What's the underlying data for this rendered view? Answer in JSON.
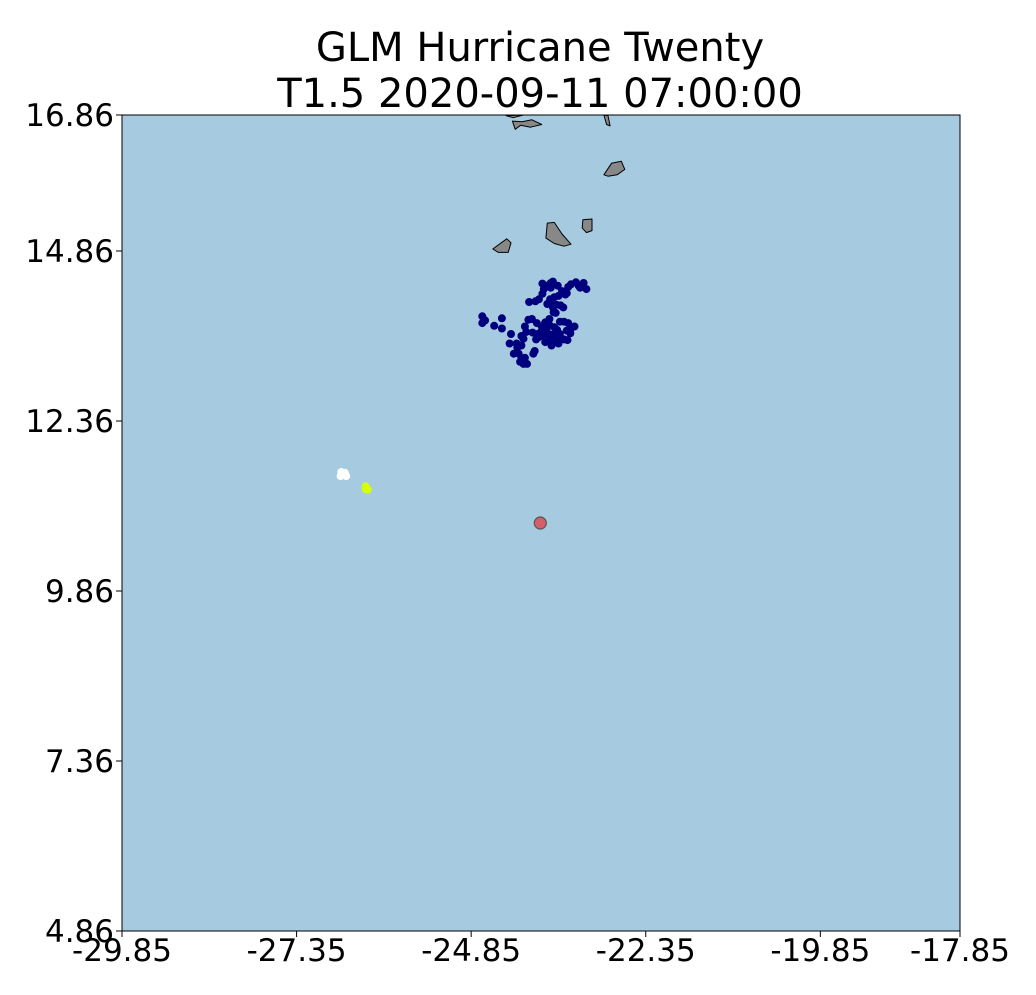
{
  "figure": {
    "title_line1": "GLM Hurricane Twenty",
    "title_line2": "T1.5 2020-09-11 07:00:00"
  },
  "chart_data": {
    "type": "scatter",
    "projection": "lon-lat map",
    "ocean_color": "#a6cadf",
    "land_color": "#888888",
    "xlim": [
      -29.85,
      -17.85
    ],
    "ylim": [
      4.86,
      16.86
    ],
    "xticks": [
      "-29.85",
      "-27.35",
      "-24.85",
      "-22.35",
      "-19.85",
      "-17.85"
    ],
    "yticks": [
      "16.86",
      "14.86",
      "12.36",
      "9.86",
      "7.36",
      "4.86"
    ],
    "islands": [
      {
        "name": "Santo Antão",
        "points": [
          [
            -24.35,
            16.85
          ],
          [
            -24.25,
            16.82
          ],
          [
            -24.1,
            16.86
          ]
        ]
      },
      {
        "name": "São Vicente",
        "points": [
          [
            -24.26,
            16.77
          ],
          [
            -24.12,
            16.76
          ],
          [
            -23.98,
            16.79
          ],
          [
            -23.84,
            16.72
          ],
          [
            -24.0,
            16.68
          ],
          [
            -24.14,
            16.71
          ],
          [
            -24.22,
            16.65
          ]
        ]
      },
      {
        "name": "Sal",
        "points": [
          [
            -22.95,
            16.86
          ],
          [
            -22.89,
            16.85
          ],
          [
            -22.86,
            16.7
          ],
          [
            -22.91,
            16.72
          ]
        ]
      },
      {
        "name": "Boa Vista",
        "points": [
          [
            -22.95,
            15.98
          ],
          [
            -22.84,
            16.15
          ],
          [
            -22.7,
            16.18
          ],
          [
            -22.65,
            16.06
          ],
          [
            -22.76,
            15.98
          ],
          [
            -22.89,
            15.96
          ]
        ]
      },
      {
        "name": "Maio",
        "points": [
          [
            -23.25,
            15.32
          ],
          [
            -23.12,
            15.33
          ],
          [
            -23.12,
            15.16
          ],
          [
            -23.2,
            15.13
          ],
          [
            -23.26,
            15.2
          ]
        ]
      },
      {
        "name": "Santiago",
        "points": [
          [
            -23.76,
            15.27
          ],
          [
            -23.66,
            15.28
          ],
          [
            -23.55,
            15.11
          ],
          [
            -23.42,
            14.96
          ],
          [
            -23.52,
            14.93
          ],
          [
            -23.66,
            14.97
          ],
          [
            -23.78,
            15.05
          ]
        ]
      },
      {
        "name": "Fogo",
        "points": [
          [
            -24.46,
            14.95
          ],
          [
            -24.34,
            15.04
          ],
          [
            -24.28,
            14.98
          ],
          [
            -24.32,
            14.84
          ],
          [
            -24.46,
            14.84
          ],
          [
            -24.54,
            14.89
          ]
        ]
      }
    ],
    "series": [
      {
        "color": "#00007f",
        "points": [
          [
            -24.69,
            13.8
          ],
          [
            -24.69,
            13.9
          ],
          [
            -24.65,
            13.84
          ],
          [
            -24.52,
            13.76
          ],
          [
            -24.41,
            13.87
          ],
          [
            -24.41,
            13.72
          ],
          [
            -24.3,
            13.5
          ],
          [
            -24.2,
            13.5
          ],
          [
            -24.28,
            13.64
          ],
          [
            -24.13,
            13.61
          ],
          [
            -24.13,
            13.47
          ],
          [
            -24.19,
            13.44
          ],
          [
            -24.17,
            13.35
          ],
          [
            -24.24,
            13.35
          ],
          [
            -24.13,
            13.27
          ],
          [
            -24.08,
            13.29
          ],
          [
            -24.1,
            13.2
          ],
          [
            -24.15,
            13.23
          ],
          [
            -24.05,
            13.2
          ],
          [
            -23.96,
            13.35
          ],
          [
            -23.94,
            13.39
          ],
          [
            -24.1,
            13.57
          ],
          [
            -24.06,
            13.67
          ],
          [
            -24.08,
            13.75
          ],
          [
            -24.03,
            13.85
          ],
          [
            -23.98,
            13.86
          ],
          [
            -23.91,
            13.8
          ],
          [
            -23.97,
            13.66
          ],
          [
            -23.86,
            13.66
          ],
          [
            -23.84,
            13.75
          ],
          [
            -23.79,
            13.81
          ],
          [
            -23.73,
            13.77
          ],
          [
            -23.69,
            13.63
          ],
          [
            -23.66,
            13.74
          ],
          [
            -23.73,
            13.86
          ],
          [
            -23.67,
            13.96
          ],
          [
            -23.58,
            13.82
          ],
          [
            -23.62,
            13.7
          ],
          [
            -23.58,
            13.64
          ],
          [
            -23.52,
            13.82
          ],
          [
            -23.46,
            13.8
          ],
          [
            -23.43,
            13.7
          ],
          [
            -23.37,
            13.75
          ],
          [
            -23.47,
            13.55
          ],
          [
            -23.52,
            13.56
          ],
          [
            -23.6,
            13.5
          ],
          [
            -23.67,
            13.56
          ],
          [
            -23.75,
            13.53
          ],
          [
            -23.79,
            13.52
          ],
          [
            -23.81,
            13.64
          ],
          [
            -23.8,
            13.77
          ],
          [
            -23.73,
            13.6
          ],
          [
            -23.7,
            13.47
          ],
          [
            -23.84,
            13.61
          ],
          [
            -23.89,
            13.59
          ],
          [
            -23.92,
            13.56
          ],
          [
            -23.9,
            13.64
          ],
          [
            -23.84,
            13.67
          ],
          [
            -23.77,
            13.69
          ],
          [
            -23.61,
            13.57
          ],
          [
            -23.48,
            13.69
          ],
          [
            -23.43,
            13.65
          ],
          [
            -23.48,
            14.24
          ],
          [
            -23.46,
            14.33
          ],
          [
            -23.55,
            14.27
          ],
          [
            -23.42,
            14.37
          ],
          [
            -23.35,
            14.4
          ],
          [
            -23.31,
            14.35
          ],
          [
            -23.24,
            14.39
          ],
          [
            -23.29,
            14.32
          ],
          [
            -23.2,
            14.3
          ],
          [
            -23.5,
            14.22
          ],
          [
            -23.6,
            14.2
          ],
          [
            -23.66,
            14.18
          ],
          [
            -23.72,
            14.15
          ],
          [
            -23.83,
            14.23
          ],
          [
            -23.81,
            14.3
          ],
          [
            -23.68,
            14.41
          ],
          [
            -23.61,
            14.35
          ],
          [
            -23.71,
            14.32
          ],
          [
            -23.77,
            14.35
          ],
          [
            -23.83,
            14.38
          ],
          [
            -23.71,
            14.39
          ],
          [
            -23.53,
            14.03
          ],
          [
            -23.64,
            13.95
          ],
          [
            -23.71,
            14.09
          ],
          [
            -23.76,
            14.08
          ],
          [
            -23.68,
            14.03
          ],
          [
            -24.02,
            14.11
          ],
          [
            -23.93,
            14.12
          ],
          [
            -23.88,
            14.15
          ],
          [
            -23.63,
            14.07
          ],
          [
            -23.57,
            14.06
          ]
        ]
      },
      {
        "color": "#ffffff",
        "points": [
          [
            -26.71,
            11.61
          ],
          [
            -26.66,
            11.6
          ],
          [
            -26.72,
            11.55
          ],
          [
            -26.64,
            11.55
          ]
        ]
      },
      {
        "color": "#d6ff00",
        "points": [
          [
            -26.36,
            11.4
          ],
          [
            -26.33,
            11.35
          ],
          [
            -26.36,
            11.36
          ]
        ]
      },
      {
        "color": "#d45f6a",
        "edge_color": "#555555",
        "marker_size": "large",
        "points": [
          [
            -23.86,
            10.86
          ]
        ]
      }
    ]
  }
}
